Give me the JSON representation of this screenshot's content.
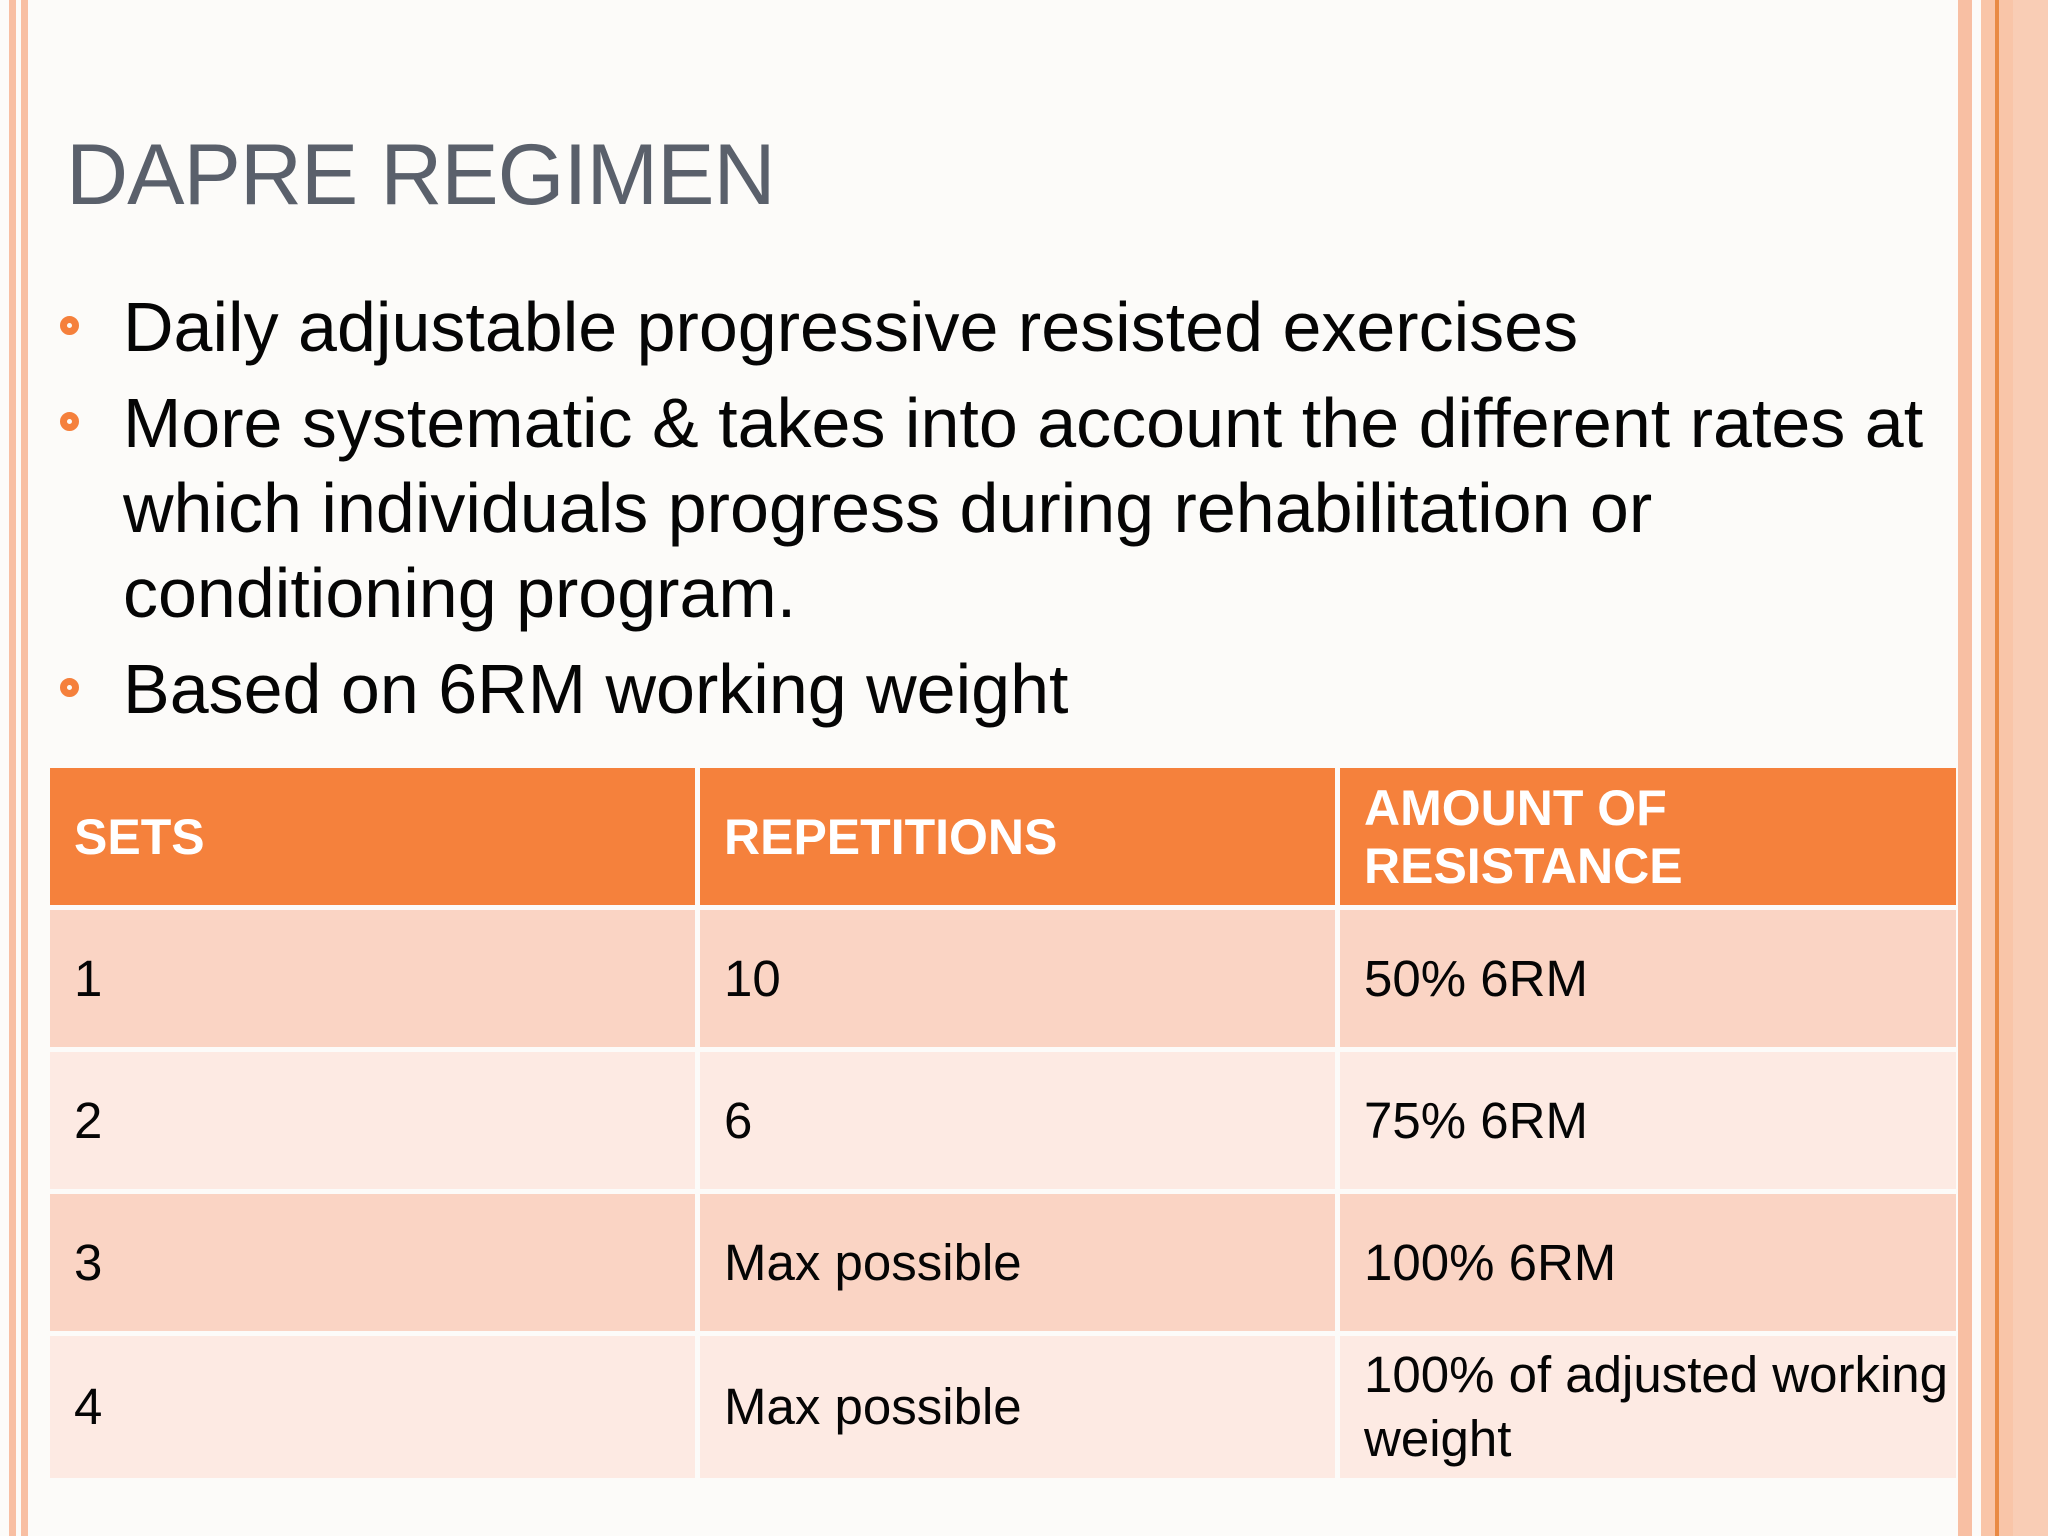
{
  "slide": {
    "title": "DAPRE REGIMEN",
    "bullets": [
      {
        "lines": [
          "Daily adjustable progressive resisted exercises"
        ]
      },
      {
        "lines": [
          "More systematic & takes into account the different rates at",
          "which individuals progress during rehabilitation or",
          "conditioning program."
        ]
      },
      {
        "lines": [
          "Based on 6RM working weight"
        ]
      }
    ],
    "table": {
      "headers": [
        "SETS",
        "REPETITIONS",
        "AMOUNT OF RESISTANCE"
      ],
      "rows": [
        [
          "1",
          "10",
          "50% 6RM"
        ],
        [
          "2",
          "6",
          "75% 6RM"
        ],
        [
          "3",
          "Max possible",
          "100% 6RM"
        ],
        [
          "4",
          "Max possible",
          "100% of adjusted working weight"
        ]
      ]
    }
  },
  "colors": {
    "accent_orange": "#f5813c",
    "bullet_orange": "#f5803c",
    "header_text": "#ffffff",
    "title_gray": "#5a606b",
    "row_dark": "#fad4c4",
    "row_light": "#fdeae3",
    "border_stripe": "#f8bfa3",
    "border_band": "#f9c5a8",
    "border_band_outer": "#f9cdb5",
    "border_line": "#e98a44",
    "body_text": "#050505",
    "background": "#fcfbf9"
  }
}
